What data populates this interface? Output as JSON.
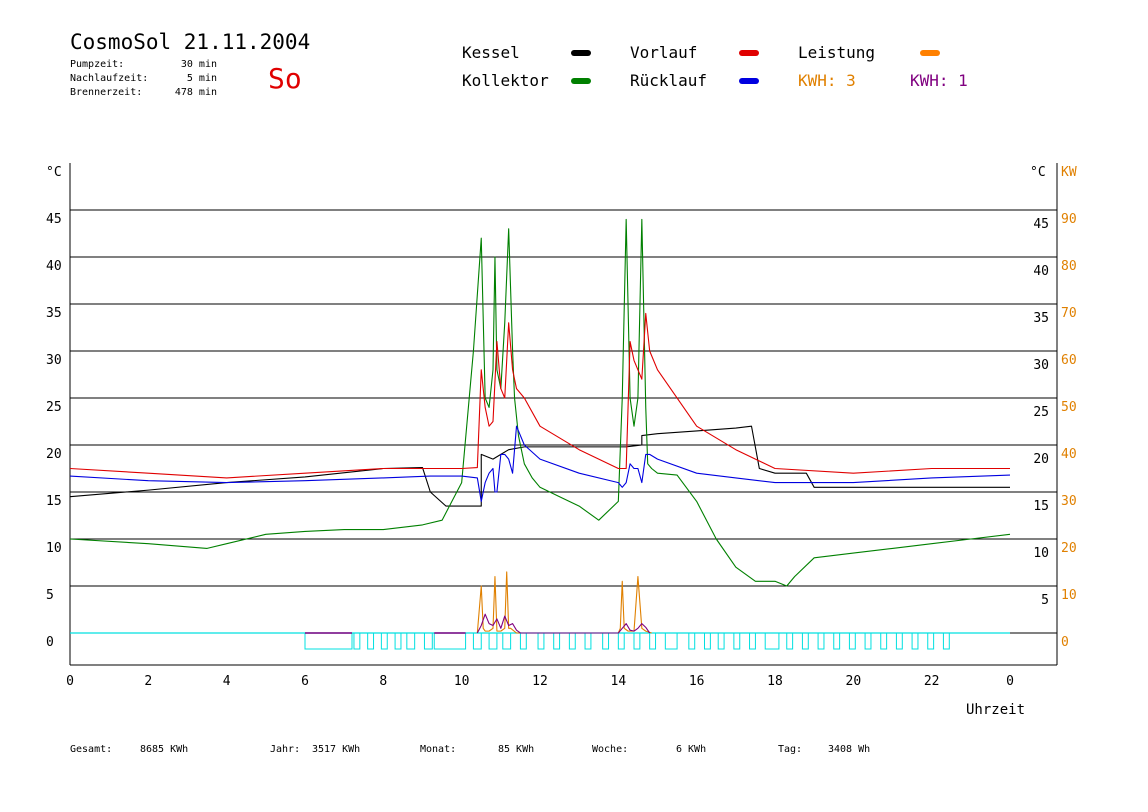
{
  "header": {
    "title": "CosmoSol 21.11.2004",
    "params": [
      {
        "label": "Pumpzeit:",
        "value": "30 min"
      },
      {
        "label": "Nachlaufzeit:",
        "value": "5 min"
      },
      {
        "label": "Brennerzeit:",
        "value": "478 min"
      }
    ],
    "day": "So"
  },
  "legend": {
    "items": [
      {
        "label": "Kessel",
        "color": "#000000"
      },
      {
        "label": "Kollektor",
        "color": "#008000"
      },
      {
        "label": "Vorlauf",
        "color": "#e00000"
      },
      {
        "label": "Rücklauf",
        "color": "#0000e0"
      },
      {
        "label": "Leistung",
        "color": "#ff8000"
      }
    ],
    "kwh": [
      {
        "text": "KWH: 3",
        "color": "#e08000"
      },
      {
        "text": "KWH: 1",
        "color": "#800080"
      }
    ]
  },
  "footer": {
    "totals": [
      {
        "label": "Gesamt:",
        "value": "8685 KWh"
      },
      {
        "label": "Jahr:",
        "value": "3517 KWh"
      },
      {
        "label": "Monat:",
        "value": "85 KWh"
      },
      {
        "label": "Woche:",
        "value": "6 KWh"
      },
      {
        "label": "Tag:",
        "value": "3408 Wh"
      }
    ]
  },
  "chart_data": {
    "type": "line",
    "xlabel": "Uhrzeit",
    "ylabel_left": "°C",
    "ylabel_right": [
      "°C",
      "KW"
    ],
    "xlim": [
      0,
      24
    ],
    "ylim": [
      0,
      50
    ],
    "ylim_right_kw": [
      0,
      100
    ],
    "x_ticks": [
      "0",
      "2",
      "4",
      "6",
      "8",
      "10",
      "12",
      "14",
      "16",
      "18",
      "20",
      "22",
      "0"
    ],
    "y_ticks_left": [
      "0",
      "5",
      "10",
      "15",
      "20",
      "25",
      "30",
      "35",
      "40",
      "45"
    ],
    "y_ticks_right_c": [
      "5",
      "10",
      "15",
      "20",
      "25",
      "30",
      "35",
      "40",
      "45"
    ],
    "y_ticks_right_kw": [
      "0",
      "10",
      "20",
      "30",
      "40",
      "50",
      "60",
      "70",
      "80",
      "90"
    ],
    "grid": true,
    "series": [
      {
        "name": "Kessel",
        "color": "#000000",
        "x": [
          0,
          2,
          4,
          6,
          8,
          9,
          9.2,
          9.6,
          10.5,
          10.5,
          10.8,
          11.0,
          11.2,
          11.6,
          12.0,
          13.0,
          14.0,
          14.2,
          14.6,
          14.6,
          15.0,
          16.0,
          17.0,
          17.4,
          17.6,
          18.0,
          18.8,
          19.0,
          20.0,
          22.0,
          24.0
        ],
        "y": [
          14.5,
          15.2,
          16.0,
          16.6,
          17.5,
          17.6,
          15.0,
          13.5,
          13.5,
          19.0,
          18.5,
          19.0,
          19.5,
          19.8,
          19.8,
          19.8,
          19.8,
          19.8,
          20.0,
          21.0,
          21.2,
          21.5,
          21.8,
          22.0,
          17.5,
          17.0,
          17.0,
          15.5,
          15.5,
          15.5,
          15.5
        ]
      },
      {
        "name": "Kollektor",
        "color": "#008000",
        "x": [
          0,
          2,
          3.5,
          4,
          5,
          6,
          7,
          8,
          9,
          9.5,
          10,
          10.3,
          10.5,
          10.6,
          10.7,
          10.8,
          10.85,
          10.9,
          11.0,
          11.1,
          11.2,
          11.3,
          11.35,
          11.45,
          11.6,
          11.8,
          12.0,
          12.5,
          13.0,
          13.5,
          14.0,
          14.1,
          14.2,
          14.3,
          14.4,
          14.5,
          14.6,
          14.7,
          14.75,
          14.85,
          15.0,
          15.5,
          16.0,
          16.5,
          17.0,
          17.5,
          18.0,
          18.3,
          18.5,
          19.0,
          20.0,
          21.0,
          22.0,
          23.0,
          24.0
        ],
        "y": [
          10.0,
          9.5,
          9.0,
          9.5,
          10.5,
          10.8,
          11.0,
          11.0,
          11.5,
          12.0,
          16.0,
          30.0,
          42.0,
          25.0,
          24.0,
          28.0,
          40.0,
          28.0,
          26.0,
          33.0,
          43.0,
          30.0,
          25.0,
          21.0,
          18.0,
          16.5,
          15.5,
          14.5,
          13.5,
          12.0,
          14.0,
          25.0,
          44.0,
          25.0,
          22.0,
          25.0,
          44.0,
          24.0,
          18.0,
          17.5,
          17.0,
          16.8,
          14.0,
          10.0,
          7.0,
          5.5,
          5.5,
          5.0,
          6.0,
          8.0,
          8.5,
          9.0,
          9.5,
          10.0,
          10.5
        ]
      },
      {
        "name": "Vorlauf",
        "color": "#e00000",
        "x": [
          0,
          2,
          4,
          6,
          8,
          10,
          10.4,
          10.5,
          10.6,
          10.7,
          10.8,
          10.9,
          11.0,
          11.1,
          11.2,
          11.3,
          11.4,
          11.6,
          12.0,
          13.0,
          14.0,
          14.2,
          14.3,
          14.4,
          14.5,
          14.6,
          14.7,
          14.8,
          15.0,
          16.0,
          17.0,
          18.0,
          20.0,
          22.0,
          24.0
        ],
        "y": [
          17.5,
          17.0,
          16.5,
          17.0,
          17.5,
          17.5,
          17.6,
          28.0,
          24.0,
          22.0,
          22.5,
          31.0,
          26.0,
          25.0,
          33.0,
          28.0,
          26.0,
          25.0,
          22.0,
          19.5,
          17.5,
          17.5,
          31.0,
          29.0,
          28.0,
          27.0,
          34.0,
          30.0,
          28.0,
          22.0,
          19.5,
          17.5,
          17.0,
          17.5,
          17.5
        ]
      },
      {
        "name": "Rücklauf",
        "color": "#0000e0",
        "x": [
          0,
          2,
          4,
          6,
          8,
          9.2,
          10.0,
          10.4,
          10.5,
          10.6,
          10.7,
          10.8,
          10.85,
          10.9,
          11.0,
          11.1,
          11.2,
          11.3,
          11.4,
          11.6,
          12.0,
          13.0,
          14.0,
          14.1,
          14.2,
          14.3,
          14.4,
          14.5,
          14.6,
          14.7,
          14.8,
          15.0,
          16.0,
          17.0,
          18.0,
          20.0,
          22.0,
          24.0
        ],
        "y": [
          16.7,
          16.2,
          16.0,
          16.2,
          16.5,
          16.7,
          16.7,
          16.5,
          14.0,
          16.0,
          17.0,
          17.5,
          15.0,
          15.0,
          19.0,
          19.0,
          18.5,
          17.0,
          22.0,
          20.0,
          18.5,
          17.0,
          16.0,
          15.5,
          16.0,
          18.0,
          17.5,
          17.5,
          16.0,
          19.0,
          19.0,
          18.5,
          17.0,
          16.5,
          16.0,
          16.0,
          16.5,
          16.8
        ]
      },
      {
        "name": "Leistung",
        "color": "#e08000",
        "x": [
          10.4,
          10.5,
          10.55,
          10.6,
          10.7,
          10.8,
          10.85,
          10.9,
          11.0,
          11.1,
          11.15,
          11.2,
          11.25,
          11.4,
          14.0,
          14.05,
          14.1,
          14.15,
          14.25,
          14.4,
          14.5,
          14.6,
          14.7,
          14.85
        ],
        "y": [
          0,
          5.0,
          0.5,
          0.2,
          0.2,
          0.5,
          6.0,
          0.2,
          0.2,
          0.5,
          6.5,
          0.5,
          0.5,
          0,
          0,
          0.5,
          5.5,
          0.5,
          0.2,
          0.2,
          6.0,
          0.5,
          0.2,
          0
        ]
      },
      {
        "name": "KWH 1",
        "color": "#800080",
        "x": [
          10.4,
          10.5,
          10.6,
          10.7,
          10.8,
          10.9,
          11.0,
          11.1,
          11.2,
          11.3,
          11.4,
          11.5,
          14.0,
          14.1,
          14.2,
          14.3,
          14.4,
          14.5,
          14.6,
          14.7,
          14.8
        ],
        "y": [
          0,
          0.8,
          2.0,
          1.0,
          0.8,
          1.5,
          0.5,
          1.8,
          0.8,
          1.0,
          0.3,
          0,
          0,
          0.5,
          1.0,
          0.3,
          0.2,
          0.5,
          1.0,
          0.6,
          0
        ]
      }
    ],
    "pump_intervals_hours": [
      [
        6.0,
        7.2
      ],
      [
        7.25,
        7.4
      ],
      [
        7.6,
        7.75
      ],
      [
        7.95,
        8.1
      ],
      [
        8.3,
        8.45
      ],
      [
        8.6,
        8.8
      ],
      [
        9.05,
        9.25
      ],
      [
        9.3,
        10.1
      ],
      [
        10.3,
        10.5
      ],
      [
        10.7,
        10.9
      ],
      [
        11.05,
        11.25
      ],
      [
        11.5,
        11.65
      ],
      [
        11.95,
        12.1
      ],
      [
        12.35,
        12.5
      ],
      [
        12.75,
        12.9
      ],
      [
        13.15,
        13.3
      ],
      [
        13.6,
        13.75
      ],
      [
        14.0,
        14.15
      ],
      [
        14.4,
        14.55
      ],
      [
        14.8,
        14.95
      ],
      [
        15.2,
        15.5
      ],
      [
        15.8,
        15.95
      ],
      [
        16.2,
        16.35
      ],
      [
        16.55,
        16.7
      ],
      [
        16.95,
        17.1
      ],
      [
        17.35,
        17.5
      ],
      [
        17.75,
        18.1
      ],
      [
        18.3,
        18.45
      ],
      [
        18.7,
        18.85
      ],
      [
        19.1,
        19.25
      ],
      [
        19.5,
        19.65
      ],
      [
        19.9,
        20.05
      ],
      [
        20.3,
        20.45
      ],
      [
        20.7,
        20.85
      ],
      [
        21.1,
        21.25
      ],
      [
        21.5,
        21.65
      ],
      [
        21.9,
        22.05
      ],
      [
        22.3,
        22.45
      ]
    ],
    "pump_highlight_intervals_hours": [
      [
        6.0,
        7.2
      ],
      [
        9.3,
        10.1
      ]
    ],
    "pump_colors": {
      "cyan": "#00e0e0",
      "magenta": "#800080"
    }
  }
}
